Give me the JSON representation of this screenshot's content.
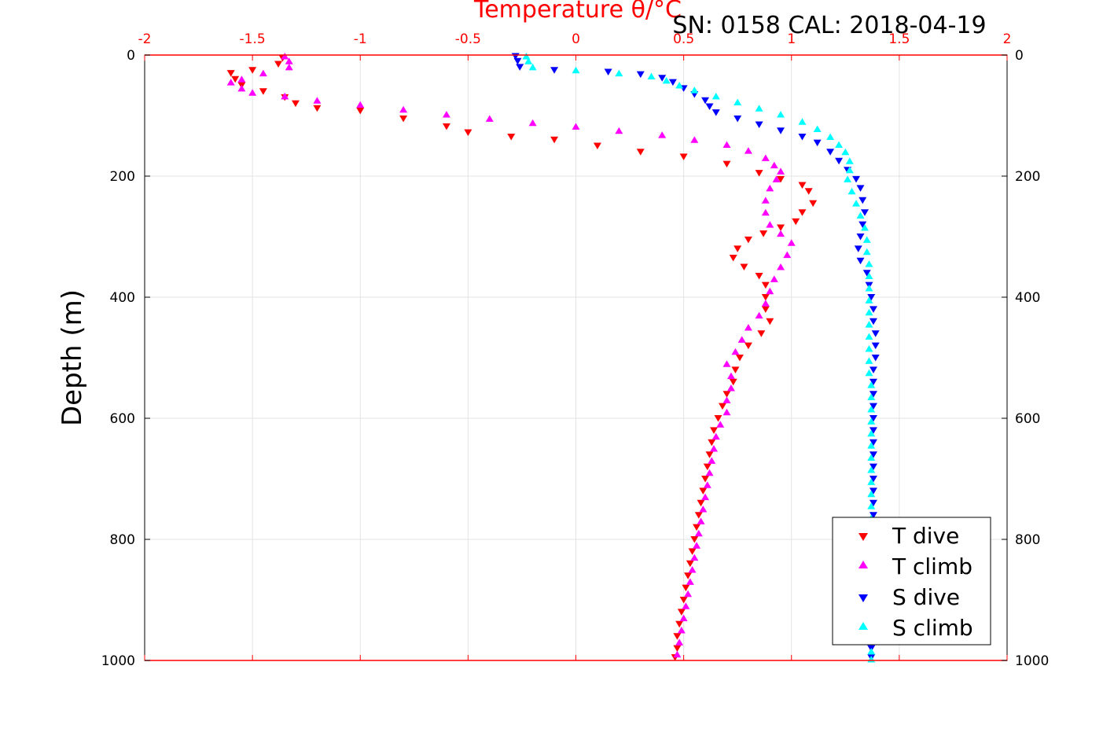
{
  "chart_data": {
    "type": "scatter",
    "title": "SN: 0158  CAL: 2018-04-19",
    "xlabel": "Temperature θ/°C",
    "ylabel": "Depth (m)",
    "xlim": [
      -2,
      2
    ],
    "ylim": [
      0,
      1000
    ],
    "y_reversed": true,
    "x_ticks": [
      "-2",
      "-1.5",
      "-1",
      "-0.5",
      "0",
      "0.5",
      "1",
      "1.5",
      "2"
    ],
    "y_ticks": [
      "0",
      "200",
      "400",
      "600",
      "800",
      "1000"
    ],
    "grid": true,
    "legend_position": "bottom-right",
    "colors": {
      "axis_x": "#ff0000",
      "t_dive": "#ff0000",
      "t_climb": "#ff00ff",
      "s_dive": "#0000ff",
      "s_climb": "#00ffff"
    },
    "series": [
      {
        "name": "T dive",
        "marker": "triangle-down",
        "color": "#ff0000",
        "points": [
          [
            -1.36,
            5
          ],
          [
            -1.38,
            15
          ],
          [
            -1.5,
            25
          ],
          [
            -1.6,
            30
          ],
          [
            -1.58,
            40
          ],
          [
            -1.55,
            50
          ],
          [
            -1.45,
            60
          ],
          [
            -1.35,
            70
          ],
          [
            -1.3,
            80
          ],
          [
            -1.2,
            88
          ],
          [
            -1.0,
            92
          ],
          [
            -0.8,
            105
          ],
          [
            -0.6,
            118
          ],
          [
            -0.5,
            128
          ],
          [
            -0.3,
            135
          ],
          [
            -0.1,
            140
          ],
          [
            0.1,
            150
          ],
          [
            0.3,
            160
          ],
          [
            0.5,
            168
          ],
          [
            0.7,
            180
          ],
          [
            0.85,
            195
          ],
          [
            0.95,
            205
          ],
          [
            1.05,
            215
          ],
          [
            1.08,
            225
          ],
          [
            1.1,
            245
          ],
          [
            1.05,
            260
          ],
          [
            1.02,
            275
          ],
          [
            0.95,
            285
          ],
          [
            0.87,
            295
          ],
          [
            0.8,
            305
          ],
          [
            0.75,
            320
          ],
          [
            0.73,
            335
          ],
          [
            0.78,
            350
          ],
          [
            0.85,
            365
          ],
          [
            0.88,
            380
          ],
          [
            0.88,
            400
          ],
          [
            0.88,
            420
          ],
          [
            0.9,
            440
          ],
          [
            0.86,
            460
          ],
          [
            0.8,
            480
          ],
          [
            0.76,
            500
          ],
          [
            0.74,
            520
          ],
          [
            0.73,
            540
          ],
          [
            0.7,
            560
          ],
          [
            0.68,
            580
          ],
          [
            0.66,
            600
          ],
          [
            0.64,
            620
          ],
          [
            0.63,
            640
          ],
          [
            0.62,
            660
          ],
          [
            0.61,
            680
          ],
          [
            0.6,
            700
          ],
          [
            0.59,
            720
          ],
          [
            0.58,
            740
          ],
          [
            0.57,
            760
          ],
          [
            0.56,
            780
          ],
          [
            0.55,
            800
          ],
          [
            0.54,
            820
          ],
          [
            0.53,
            840
          ],
          [
            0.52,
            860
          ],
          [
            0.51,
            880
          ],
          [
            0.5,
            900
          ],
          [
            0.49,
            920
          ],
          [
            0.48,
            940
          ],
          [
            0.47,
            960
          ],
          [
            0.47,
            980
          ],
          [
            0.46,
            995
          ]
        ]
      },
      {
        "name": "T climb",
        "marker": "triangle-up",
        "color": "#ff00ff",
        "points": [
          [
            -1.35,
            2
          ],
          [
            -1.33,
            10
          ],
          [
            -1.33,
            20
          ],
          [
            -1.45,
            30
          ],
          [
            -1.55,
            40
          ],
          [
            -1.6,
            45
          ],
          [
            -1.55,
            55
          ],
          [
            -1.5,
            62
          ],
          [
            -1.35,
            68
          ],
          [
            -1.2,
            75
          ],
          [
            -1.0,
            82
          ],
          [
            -0.8,
            90
          ],
          [
            -0.6,
            98
          ],
          [
            -0.4,
            105
          ],
          [
            -0.2,
            112
          ],
          [
            0.0,
            118
          ],
          [
            0.2,
            125
          ],
          [
            0.4,
            132
          ],
          [
            0.55,
            140
          ],
          [
            0.7,
            148
          ],
          [
            0.8,
            158
          ],
          [
            0.88,
            170
          ],
          [
            0.92,
            182
          ],
          [
            0.95,
            192
          ],
          [
            0.93,
            205
          ],
          [
            0.9,
            220
          ],
          [
            0.88,
            240
          ],
          [
            0.88,
            260
          ],
          [
            0.9,
            280
          ],
          [
            0.95,
            295
          ],
          [
            1.0,
            310
          ],
          [
            0.98,
            330
          ],
          [
            0.95,
            350
          ],
          [
            0.92,
            370
          ],
          [
            0.9,
            390
          ],
          [
            0.88,
            410
          ],
          [
            0.85,
            430
          ],
          [
            0.8,
            450
          ],
          [
            0.77,
            470
          ],
          [
            0.74,
            490
          ],
          [
            0.7,
            510
          ],
          [
            0.72,
            530
          ],
          [
            0.72,
            550
          ],
          [
            0.7,
            570
          ],
          [
            0.7,
            590
          ],
          [
            0.67,
            610
          ],
          [
            0.65,
            630
          ],
          [
            0.64,
            650
          ],
          [
            0.63,
            670
          ],
          [
            0.62,
            690
          ],
          [
            0.61,
            710
          ],
          [
            0.6,
            730
          ],
          [
            0.59,
            750
          ],
          [
            0.58,
            770
          ],
          [
            0.57,
            790
          ],
          [
            0.56,
            810
          ],
          [
            0.55,
            830
          ],
          [
            0.54,
            850
          ],
          [
            0.53,
            870
          ],
          [
            0.52,
            890
          ],
          [
            0.51,
            910
          ],
          [
            0.5,
            930
          ],
          [
            0.49,
            950
          ],
          [
            0.48,
            970
          ],
          [
            0.47,
            990
          ]
        ]
      },
      {
        "name": "S dive",
        "marker": "triangle-down",
        "color": "#0000ff",
        "points": [
          [
            -0.28,
            2
          ],
          [
            -0.27,
            10
          ],
          [
            -0.26,
            20
          ],
          [
            -0.1,
            25
          ],
          [
            0.15,
            28
          ],
          [
            0.3,
            32
          ],
          [
            0.4,
            38
          ],
          [
            0.45,
            45
          ],
          [
            0.5,
            55
          ],
          [
            0.55,
            65
          ],
          [
            0.6,
            75
          ],
          [
            0.62,
            85
          ],
          [
            0.65,
            95
          ],
          [
            0.75,
            105
          ],
          [
            0.85,
            115
          ],
          [
            0.95,
            125
          ],
          [
            1.05,
            135
          ],
          [
            1.12,
            145
          ],
          [
            1.18,
            160
          ],
          [
            1.22,
            175
          ],
          [
            1.26,
            190
          ],
          [
            1.3,
            205
          ],
          [
            1.32,
            220
          ],
          [
            1.33,
            240
          ],
          [
            1.34,
            260
          ],
          [
            1.33,
            280
          ],
          [
            1.32,
            300
          ],
          [
            1.31,
            320
          ],
          [
            1.32,
            340
          ],
          [
            1.35,
            360
          ],
          [
            1.36,
            380
          ],
          [
            1.37,
            400
          ],
          [
            1.38,
            420
          ],
          [
            1.38,
            440
          ],
          [
            1.39,
            460
          ],
          [
            1.39,
            480
          ],
          [
            1.39,
            500
          ],
          [
            1.38,
            520
          ],
          [
            1.38,
            540
          ],
          [
            1.38,
            560
          ],
          [
            1.38,
            580
          ],
          [
            1.38,
            600
          ],
          [
            1.38,
            620
          ],
          [
            1.38,
            640
          ],
          [
            1.38,
            660
          ],
          [
            1.38,
            680
          ],
          [
            1.38,
            700
          ],
          [
            1.38,
            720
          ],
          [
            1.38,
            740
          ],
          [
            1.38,
            760
          ],
          [
            1.37,
            780
          ],
          [
            1.37,
            800
          ],
          [
            1.37,
            820
          ],
          [
            1.37,
            840
          ],
          [
            1.37,
            860
          ],
          [
            1.37,
            880
          ],
          [
            1.37,
            900
          ],
          [
            1.37,
            920
          ],
          [
            1.37,
            940
          ],
          [
            1.37,
            960
          ],
          [
            1.37,
            980
          ],
          [
            1.37,
            995
          ]
        ]
      },
      {
        "name": "S climb",
        "marker": "triangle-up",
        "color": "#00ffff",
        "points": [
          [
            -0.23,
            2
          ],
          [
            -0.22,
            10
          ],
          [
            -0.2,
            20
          ],
          [
            0.0,
            25
          ],
          [
            0.2,
            30
          ],
          [
            0.35,
            35
          ],
          [
            0.42,
            42
          ],
          [
            0.48,
            50
          ],
          [
            0.55,
            58
          ],
          [
            0.65,
            68
          ],
          [
            0.75,
            78
          ],
          [
            0.85,
            88
          ],
          [
            0.95,
            98
          ],
          [
            1.05,
            110
          ],
          [
            1.12,
            122
          ],
          [
            1.18,
            135
          ],
          [
            1.22,
            148
          ],
          [
            1.25,
            160
          ],
          [
            1.27,
            175
          ],
          [
            1.27,
            190
          ],
          [
            1.26,
            205
          ],
          [
            1.28,
            225
          ],
          [
            1.3,
            245
          ],
          [
            1.32,
            265
          ],
          [
            1.34,
            285
          ],
          [
            1.35,
            305
          ],
          [
            1.35,
            325
          ],
          [
            1.36,
            345
          ],
          [
            1.36,
            365
          ],
          [
            1.36,
            385
          ],
          [
            1.36,
            405
          ],
          [
            1.36,
            425
          ],
          [
            1.36,
            445
          ],
          [
            1.36,
            465
          ],
          [
            1.36,
            485
          ],
          [
            1.36,
            505
          ],
          [
            1.36,
            525
          ],
          [
            1.37,
            545
          ],
          [
            1.37,
            565
          ],
          [
            1.37,
            585
          ],
          [
            1.37,
            605
          ],
          [
            1.37,
            625
          ],
          [
            1.37,
            645
          ],
          [
            1.37,
            665
          ],
          [
            1.37,
            685
          ],
          [
            1.37,
            705
          ],
          [
            1.37,
            725
          ],
          [
            1.37,
            745
          ],
          [
            1.37,
            765
          ],
          [
            1.37,
            785
          ],
          [
            1.37,
            805
          ],
          [
            1.37,
            825
          ],
          [
            1.37,
            845
          ],
          [
            1.37,
            865
          ],
          [
            1.37,
            885
          ],
          [
            1.37,
            905
          ],
          [
            1.37,
            925
          ],
          [
            1.37,
            945
          ],
          [
            1.37,
            965
          ],
          [
            1.37,
            985
          ],
          [
            1.37,
            998
          ]
        ]
      }
    ]
  }
}
